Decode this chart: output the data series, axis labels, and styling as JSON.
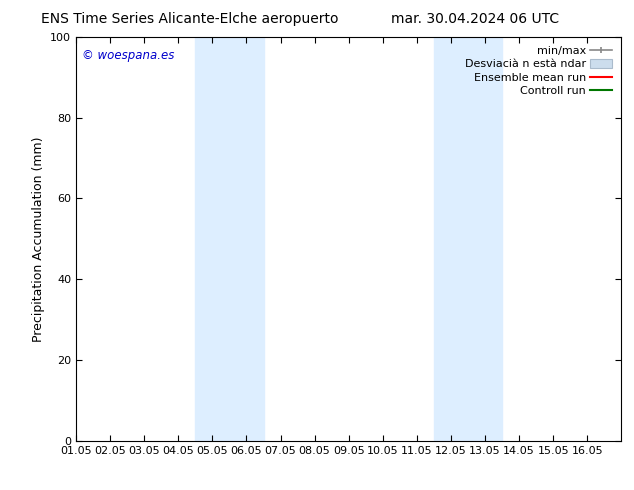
{
  "title_left": "ENS Time Series Alicante-Elche aeropuerto",
  "title_right": "mar. 30.04.2024 06 UTC",
  "ylabel": "Precipitation Accumulation (mm)",
  "xlim": [
    0,
    16
  ],
  "ylim": [
    0,
    100
  ],
  "yticks": [
    0,
    20,
    40,
    60,
    80,
    100
  ],
  "xtick_labels": [
    "01.05",
    "02.05",
    "03.05",
    "04.05",
    "05.05",
    "06.05",
    "07.05",
    "08.05",
    "09.05",
    "10.05",
    "11.05",
    "12.05",
    "13.05",
    "14.05",
    "15.05",
    "16.05"
  ],
  "xtick_positions": [
    0,
    1,
    2,
    3,
    4,
    5,
    6,
    7,
    8,
    9,
    10,
    11,
    12,
    13,
    14,
    15
  ],
  "shaded_regions": [
    {
      "x_start": 3.5,
      "x_end": 5.5,
      "color": "#ddeeff"
    },
    {
      "x_start": 10.5,
      "x_end": 12.5,
      "color": "#ddeeff"
    }
  ],
  "watermark_text": "© woespana.es",
  "watermark_color": "#0000cc",
  "bg_color": "#ffffff",
  "tick_fontsize": 8,
  "label_fontsize": 9,
  "title_fontsize": 10,
  "legend_fontsize": 8
}
